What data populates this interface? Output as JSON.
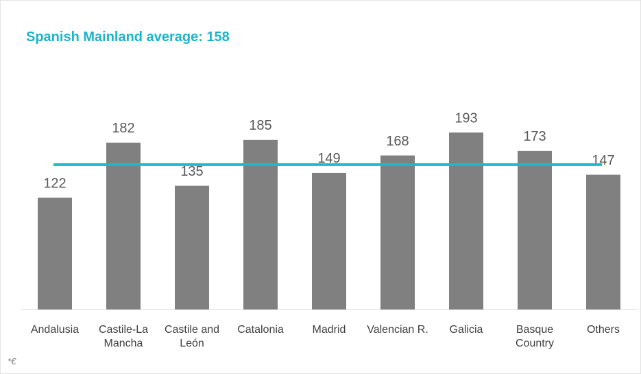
{
  "chart_data": {
    "type": "bar",
    "title": "Spanish Mainland average: 158",
    "categories": [
      "Andalusia",
      "Castile-La Mancha",
      "Castile and León",
      "Catalonia",
      "Madrid",
      "Valencian R.",
      "Galicia",
      "Basque Country",
      "Others"
    ],
    "values": [
      122,
      182,
      135,
      185,
      149,
      168,
      193,
      173,
      147
    ],
    "color": "#808080",
    "reference_line": {
      "value": 158,
      "color": "#1cb8cf"
    },
    "ylim": [
      0,
      250
    ],
    "footnote": "*€"
  }
}
